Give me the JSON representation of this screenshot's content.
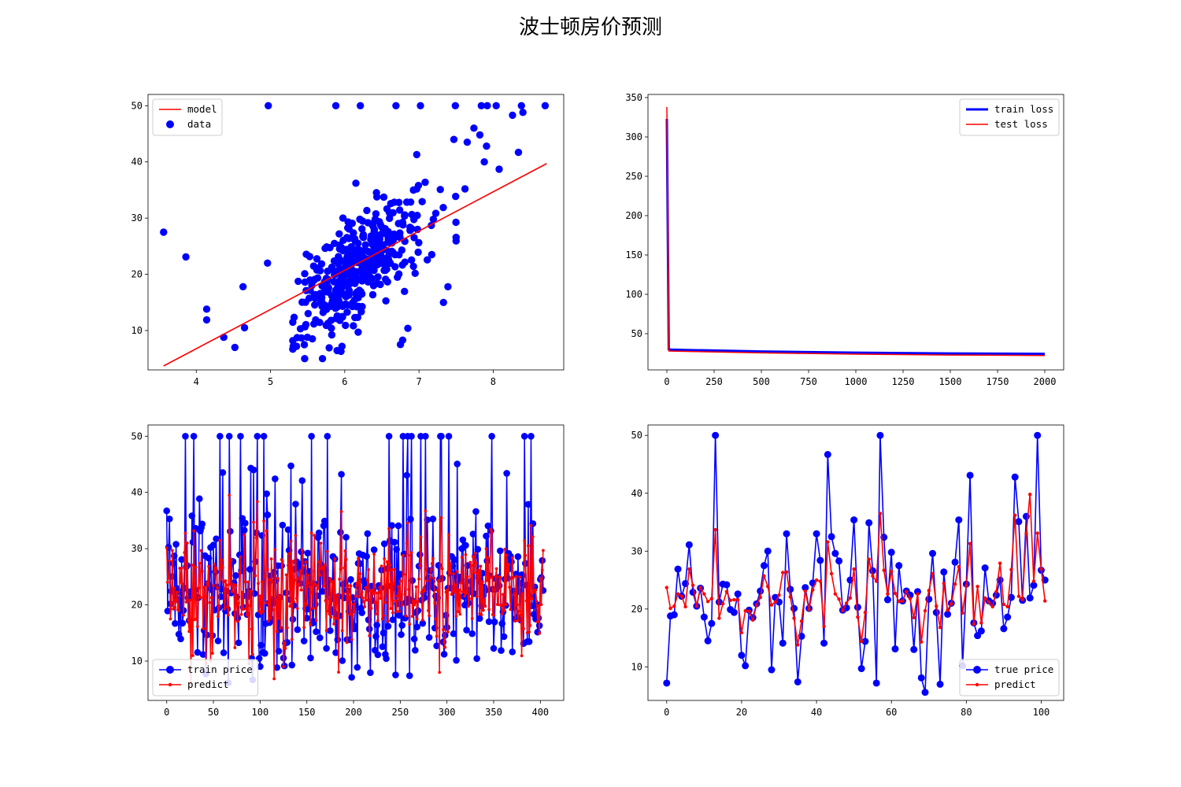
{
  "figure": {
    "title": "波士顿房价预测"
  },
  "chart_data": [
    {
      "type": "scatter",
      "xlim": [
        3.35,
        8.95
      ],
      "ylim": [
        3.0,
        52.0
      ],
      "xticks": [
        4,
        5,
        6,
        7,
        8
      ],
      "yticks": [
        10,
        20,
        30,
        40,
        50
      ],
      "legend_position": "top-left",
      "legend": [
        {
          "label": "model",
          "kind": "line",
          "color": "#ff0000"
        },
        {
          "label": "data",
          "kind": "marker",
          "color": "#0000ff"
        }
      ],
      "model_line": {
        "x": [
          3.56,
          8.72
        ],
        "y": [
          3.7,
          39.7
        ],
        "color": "#ff0000"
      },
      "data_seed": 7,
      "data_count": 400,
      "outliers": [
        {
          "x": 3.56,
          "y": 27.5
        },
        {
          "x": 3.86,
          "y": 23.1
        },
        {
          "x": 4.14,
          "y": 13.8
        },
        {
          "x": 4.14,
          "y": 11.9
        },
        {
          "x": 4.37,
          "y": 8.8
        },
        {
          "x": 4.52,
          "y": 7.0
        },
        {
          "x": 4.63,
          "y": 17.8
        },
        {
          "x": 4.65,
          "y": 10.5
        },
        {
          "x": 4.97,
          "y": 50.0
        },
        {
          "x": 4.96,
          "y": 22.0
        },
        {
          "x": 5.88,
          "y": 50.0
        },
        {
          "x": 6.21,
          "y": 50.0
        },
        {
          "x": 6.69,
          "y": 50.0
        },
        {
          "x": 7.02,
          "y": 50.0
        },
        {
          "x": 7.49,
          "y": 50.0
        },
        {
          "x": 7.84,
          "y": 50.0
        },
        {
          "x": 7.92,
          "y": 50.0
        },
        {
          "x": 8.04,
          "y": 50.0
        },
        {
          "x": 8.38,
          "y": 50.0
        },
        {
          "x": 8.7,
          "y": 50.0
        },
        {
          "x": 8.4,
          "y": 48.8
        },
        {
          "x": 8.26,
          "y": 48.3
        },
        {
          "x": 7.74,
          "y": 46.0
        },
        {
          "x": 7.82,
          "y": 44.8
        },
        {
          "x": 8.34,
          "y": 41.7
        },
        {
          "x": 7.91,
          "y": 42.8
        },
        {
          "x": 8.08,
          "y": 38.7
        },
        {
          "x": 7.88,
          "y": 40.0
        },
        {
          "x": 7.65,
          "y": 43.5
        },
        {
          "x": 7.47,
          "y": 44.0
        },
        {
          "x": 7.62,
          "y": 35.2
        },
        {
          "x": 6.15,
          "y": 36.2
        },
        {
          "x": 6.97,
          "y": 41.3
        },
        {
          "x": 6.78,
          "y": 8.3
        },
        {
          "x": 6.85,
          "y": 10.4
        },
        {
          "x": 7.39,
          "y": 17.8
        },
        {
          "x": 7.33,
          "y": 15.0
        },
        {
          "x": 5.35,
          "y": 7.2
        },
        {
          "x": 5.46,
          "y": 5.0
        },
        {
          "x": 5.7,
          "y": 5.0
        },
        {
          "x": 5.95,
          "y": 6.3
        },
        {
          "x": 6.75,
          "y": 7.5
        }
      ]
    },
    {
      "type": "line",
      "xlim": [
        -100,
        2100
      ],
      "ylim": [
        4,
        354
      ],
      "xticks": [
        0,
        250,
        500,
        750,
        1000,
        1250,
        1500,
        1750,
        2000
      ],
      "yticks": [
        50,
        100,
        150,
        200,
        250,
        300,
        350
      ],
      "legend_position": "top-right",
      "series": [
        {
          "name": "train loss",
          "color": "#0000ff",
          "width": 3,
          "x": [
            0,
            10,
            25,
            100,
            500,
            1000,
            1500,
            2000
          ],
          "y": [
            323,
            30,
            29.8,
            29.3,
            27.4,
            25.9,
            24.9,
            24.4
          ]
        },
        {
          "name": "test loss",
          "color": "#ff0000",
          "width": 1.5,
          "x": [
            0,
            10,
            25,
            100,
            500,
            1000,
            1500,
            2000
          ],
          "y": [
            338,
            28.0,
            27.9,
            27.5,
            25.6,
            24.0,
            22.9,
            22.3
          ]
        }
      ]
    },
    {
      "type": "line",
      "xlim": [
        -20,
        425
      ],
      "ylim": [
        3.0,
        52.0
      ],
      "xticks": [
        0,
        50,
        100,
        150,
        200,
        250,
        300,
        350,
        400
      ],
      "yticks": [
        10,
        20,
        30,
        40,
        50
      ],
      "legend_position": "bottom-left",
      "n_points": 404,
      "seed": 31,
      "series": [
        {
          "name": "train price",
          "color": "#0000ff",
          "marker": "circle"
        },
        {
          "name": "predict",
          "color": "#ff0000",
          "marker": "dot"
        }
      ]
    },
    {
      "type": "line",
      "xlim": [
        -5,
        106
      ],
      "ylim": [
        4.2,
        51.8
      ],
      "xticks": [
        0,
        20,
        40,
        60,
        80,
        100
      ],
      "yticks": [
        10,
        20,
        30,
        40,
        50
      ],
      "legend_position": "bottom-right",
      "series": [
        {
          "name": "true price",
          "color": "#0000ff",
          "marker": "circle",
          "values": [
            7.2,
            18.8,
            19.0,
            26.9,
            22.2,
            24.4,
            31.1,
            22.9,
            20.5,
            23.6,
            18.6,
            14.5,
            17.5,
            50.0,
            21.2,
            24.3,
            24.2,
            19.9,
            19.4,
            22.6,
            12.0,
            10.2,
            19.8,
            18.5,
            20.9,
            23.1,
            27.5,
            30.0,
            9.5,
            22.0,
            21.2,
            14.1,
            33.0,
            23.4,
            20.1,
            7.4,
            15.3,
            23.7,
            20.1,
            24.5,
            33.0,
            28.4,
            14.1,
            46.7,
            32.5,
            29.6,
            28.3,
            19.8,
            20.2,
            25.0,
            35.4,
            20.3,
            9.7,
            14.4,
            34.9,
            26.6,
            7.2,
            50.0,
            32.4,
            21.6,
            29.8,
            13.1,
            27.5,
            21.4,
            23.1,
            22.4,
            13.0,
            23.0,
            8.1,
            5.6,
            21.7,
            29.6,
            19.4,
            7.0,
            26.4,
            19.1,
            21.0,
            28.1,
            35.4,
            10.2,
            24.3,
            43.1,
            17.6,
            15.4,
            16.2,
            27.1,
            21.4,
            21.0,
            22.4,
            25.0,
            16.6,
            18.6,
            22.0,
            42.8,
            35.1,
            21.5,
            36.0,
            21.9,
            24.1,
            50.0,
            26.7,
            25.0
          ]
        },
        {
          "name": "predict",
          "color": "#ff0000",
          "marker": "dot",
          "values": [
            23.7,
            20.1,
            20.5,
            22.6,
            22.2,
            20.4,
            26.9,
            24.1,
            20.5,
            23.7,
            22.6,
            21.3,
            21.8,
            33.7,
            18.4,
            20.9,
            23.0,
            21.5,
            21.6,
            21.6,
            15.9,
            19.7,
            19.6,
            18.1,
            20.7,
            22.0,
            25.7,
            23.9,
            20.7,
            21.2,
            22.4,
            26.3,
            26.4,
            22.1,
            18.4,
            13.8,
            17.9,
            23.1,
            19.9,
            23.3,
            25.0,
            24.8,
            17.0,
            31.6,
            26.1,
            22.6,
            21.7,
            19.7,
            21.0,
            21.9,
            26.9,
            18.6,
            14.4,
            19.4,
            28.6,
            25.7,
            24.8,
            36.5,
            26.7,
            22.6,
            26.5,
            22.7,
            21.3,
            21.4,
            23.0,
            21.8,
            18.5,
            22.6,
            14.3,
            19.7,
            23.2,
            26.1,
            20.5,
            16.8,
            24.4,
            19.8,
            20.9,
            24.3,
            27.3,
            19.3,
            24.0,
            31.3,
            17.4,
            23.9,
            17.6,
            21.9,
            21.2,
            20.4,
            23.0,
            27.9,
            20.8,
            20.4,
            26.8,
            36.2,
            22.2,
            21.6,
            33.0,
            39.8,
            24.8,
            33.1,
            26.9,
            21.4
          ]
        }
      ]
    }
  ]
}
